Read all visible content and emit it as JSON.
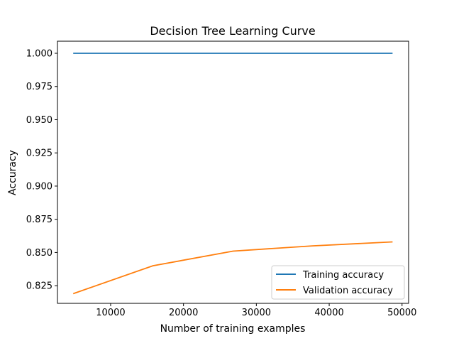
{
  "chart_data": {
    "type": "line",
    "title": "Decision Tree Learning Curve",
    "xlabel": "Number of training examples",
    "ylabel": "Accuracy",
    "xlim": [
      2700,
      50900
    ],
    "ylim": [
      0.8117,
      1.0091
    ],
    "xticks": [
      10000,
      20000,
      30000,
      40000,
      50000
    ],
    "xtick_labels": [
      "10000",
      "20000",
      "30000",
      "40000",
      "50000"
    ],
    "yticks": [
      0.825,
      0.85,
      0.875,
      0.9,
      0.925,
      0.95,
      0.975,
      1.0
    ],
    "ytick_labels": [
      "0.825",
      "0.850",
      "0.875",
      "0.900",
      "0.925",
      "0.950",
      "0.975",
      "1.000"
    ],
    "x": [
      4860,
      15800,
      26800,
      37700,
      48700
    ],
    "series": [
      {
        "name": "Training accuracy",
        "color": "#1f77b4",
        "values": [
          1.0,
          1.0,
          1.0,
          1.0,
          1.0
        ]
      },
      {
        "name": "Validation accuracy",
        "color": "#ff7f0e",
        "values": [
          0.819,
          0.84,
          0.851,
          0.855,
          0.858
        ]
      }
    ],
    "grid": false,
    "legend_position": "lower-right"
  }
}
